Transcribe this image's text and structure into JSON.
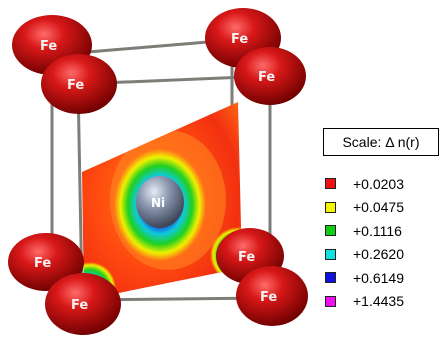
{
  "legend": {
    "title": "Scale:   Δ n(r)",
    "items": [
      {
        "label": "+0.0203",
        "color": "#ee1111"
      },
      {
        "label": "+0.0475",
        "color": "#f5f500"
      },
      {
        "label": "+0.1116",
        "color": "#11cc11"
      },
      {
        "label": "+0.2620",
        "color": "#11e0e0"
      },
      {
        "label": "+0.6149",
        "color": "#1111dd"
      },
      {
        "label": "+1.4435",
        "color": "#ee11ee"
      }
    ]
  },
  "atoms": {
    "fe_label": "Fe",
    "fe_color": "#c40c0c",
    "ni_label": "Ni",
    "ni_color": "#8a96ae"
  }
}
